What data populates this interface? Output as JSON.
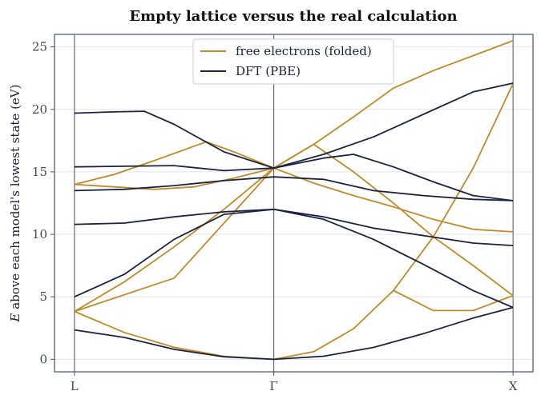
{
  "chart_data": {
    "type": "line",
    "title": "Empty lattice versus the real calculation",
    "ylabel_prefix": "E",
    "ylabel_rest": " above each model's lowest state  (eV)",
    "xlabel": "",
    "x_ticks": [
      {
        "pos": 0,
        "label": "L"
      },
      {
        "pos": 1,
        "label": "Γ"
      },
      {
        "pos": 2.2,
        "label": "X"
      }
    ],
    "xlim": [
      -0.1,
      2.3
    ],
    "ylim": [
      -1,
      26
    ],
    "y_ticks": [
      0,
      5,
      10,
      15,
      20,
      25
    ],
    "grid": "horizontal",
    "legend_position": "top-center",
    "colors": {
      "free": "#c08a27",
      "dft": "#1a2340",
      "axis": "#4a5268",
      "grid": "#e3e3e3"
    },
    "series": [
      {
        "name": "free electrons (folded)",
        "color": "#c08a27",
        "bands": [
          [
            [
              0,
              3.83
            ],
            [
              0.25,
              2.15
            ],
            [
              0.5,
              0.96
            ],
            [
              0.75,
              0.24
            ],
            [
              1,
              0
            ],
            [
              1.2,
              0.61
            ],
            [
              1.4,
              2.45
            ],
            [
              1.6,
              5.51
            ],
            [
              1.8,
              9.8
            ],
            [
              2,
              15.3
            ],
            [
              2.2,
              22.05
            ]
          ],
          [
            [
              0,
              3.83
            ],
            [
              0.25,
              6.2
            ],
            [
              0.5,
              9
            ],
            [
              0.75,
              12
            ],
            [
              1,
              15.3
            ],
            [
              1.2,
              17.2
            ],
            [
              1.4,
              19.4
            ],
            [
              1.6,
              21.7
            ],
            [
              1.8,
              23.1
            ],
            [
              2.0,
              24.3
            ],
            [
              2.2,
              25.5
            ]
          ],
          [
            [
              0,
              14
            ],
            [
              0.2,
              14.8
            ],
            [
              0.4,
              15.9
            ],
            [
              0.66,
              17.4
            ],
            [
              0.8,
              16.6
            ],
            [
              1,
              15.3
            ],
            [
              1.2,
              14.1
            ],
            [
              1.4,
              13.1
            ],
            [
              1.6,
              12.2
            ],
            [
              1.8,
              11.2
            ],
            [
              2,
              10.4
            ],
            [
              2.2,
              10.2
            ]
          ],
          [
            [
              0,
              14
            ],
            [
              0.2,
              13.8
            ],
            [
              0.4,
              13.6
            ],
            [
              0.6,
              13.8
            ],
            [
              0.8,
              14.5
            ],
            [
              1,
              15.3
            ],
            [
              1.2,
              17.2
            ],
            [
              1.4,
              15
            ],
            [
              1.6,
              12.5
            ],
            [
              1.8,
              9.8
            ],
            [
              2,
              7.5
            ],
            [
              2.2,
              5.1
            ]
          ],
          [
            [
              0,
              3.83
            ],
            [
              0.5,
              6.5
            ],
            [
              1,
              15.3
            ]
          ],
          [
            [
              1.6,
              5.51
            ],
            [
              1.8,
              3.9
            ],
            [
              2,
              3.9
            ],
            [
              2.2,
              5.1
            ]
          ]
        ]
      },
      {
        "name": "DFT (PBE)",
        "color": "#1a2340",
        "bands": [
          [
            [
              0,
              2.35
            ],
            [
              0.25,
              1.75
            ],
            [
              0.5,
              0.8
            ],
            [
              0.75,
              0.2
            ],
            [
              1,
              0
            ],
            [
              1.25,
              0.25
            ],
            [
              1.5,
              0.95
            ],
            [
              1.75,
              2.05
            ],
            [
              2,
              3.3
            ],
            [
              2.2,
              4.15
            ]
          ],
          [
            [
              0,
              5
            ],
            [
              0.25,
              6.8
            ],
            [
              0.5,
              9.6
            ],
            [
              0.75,
              11.6
            ],
            [
              1,
              12
            ],
            [
              1.25,
              11.2
            ],
            [
              1.5,
              9.6
            ],
            [
              1.75,
              7.6
            ],
            [
              2,
              5.5
            ],
            [
              2.2,
              4.15
            ]
          ],
          [
            [
              0,
              10.8
            ],
            [
              0.25,
              10.9
            ],
            [
              0.5,
              11.4
            ],
            [
              0.75,
              11.8
            ],
            [
              1,
              12
            ],
            [
              1.25,
              11.4
            ],
            [
              1.5,
              10.5
            ],
            [
              1.75,
              9.9
            ],
            [
              2,
              9.3
            ],
            [
              2.2,
              9.1
            ]
          ],
          [
            [
              0,
              13.5
            ],
            [
              0.25,
              13.6
            ],
            [
              0.5,
              13.9
            ],
            [
              0.75,
              14.3
            ],
            [
              1,
              14.6
            ],
            [
              1.25,
              14.4
            ],
            [
              1.5,
              13.5
            ],
            [
              1.75,
              13.1
            ],
            [
              2,
              12.8
            ],
            [
              2.2,
              12.7
            ]
          ],
          [
            [
              0,
              15.4
            ],
            [
              0.25,
              15.45
            ],
            [
              0.5,
              15.5
            ],
            [
              0.75,
              15.1
            ],
            [
              1,
              15.3
            ],
            [
              1.25,
              16.1
            ],
            [
              1.4,
              16.4
            ],
            [
              1.6,
              15.4
            ],
            [
              1.8,
              14.2
            ],
            [
              2,
              13.1
            ],
            [
              2.2,
              12.7
            ]
          ],
          [
            [
              0,
              19.7
            ],
            [
              0.2,
              19.8
            ],
            [
              0.35,
              19.85
            ],
            [
              0.5,
              18.8
            ],
            [
              0.75,
              16.6
            ],
            [
              1,
              15.3
            ],
            [
              1.25,
              16.4
            ],
            [
              1.5,
              17.8
            ],
            [
              1.75,
              19.6
            ],
            [
              2,
              21.4
            ],
            [
              2.2,
              22.1
            ]
          ]
        ]
      }
    ]
  }
}
